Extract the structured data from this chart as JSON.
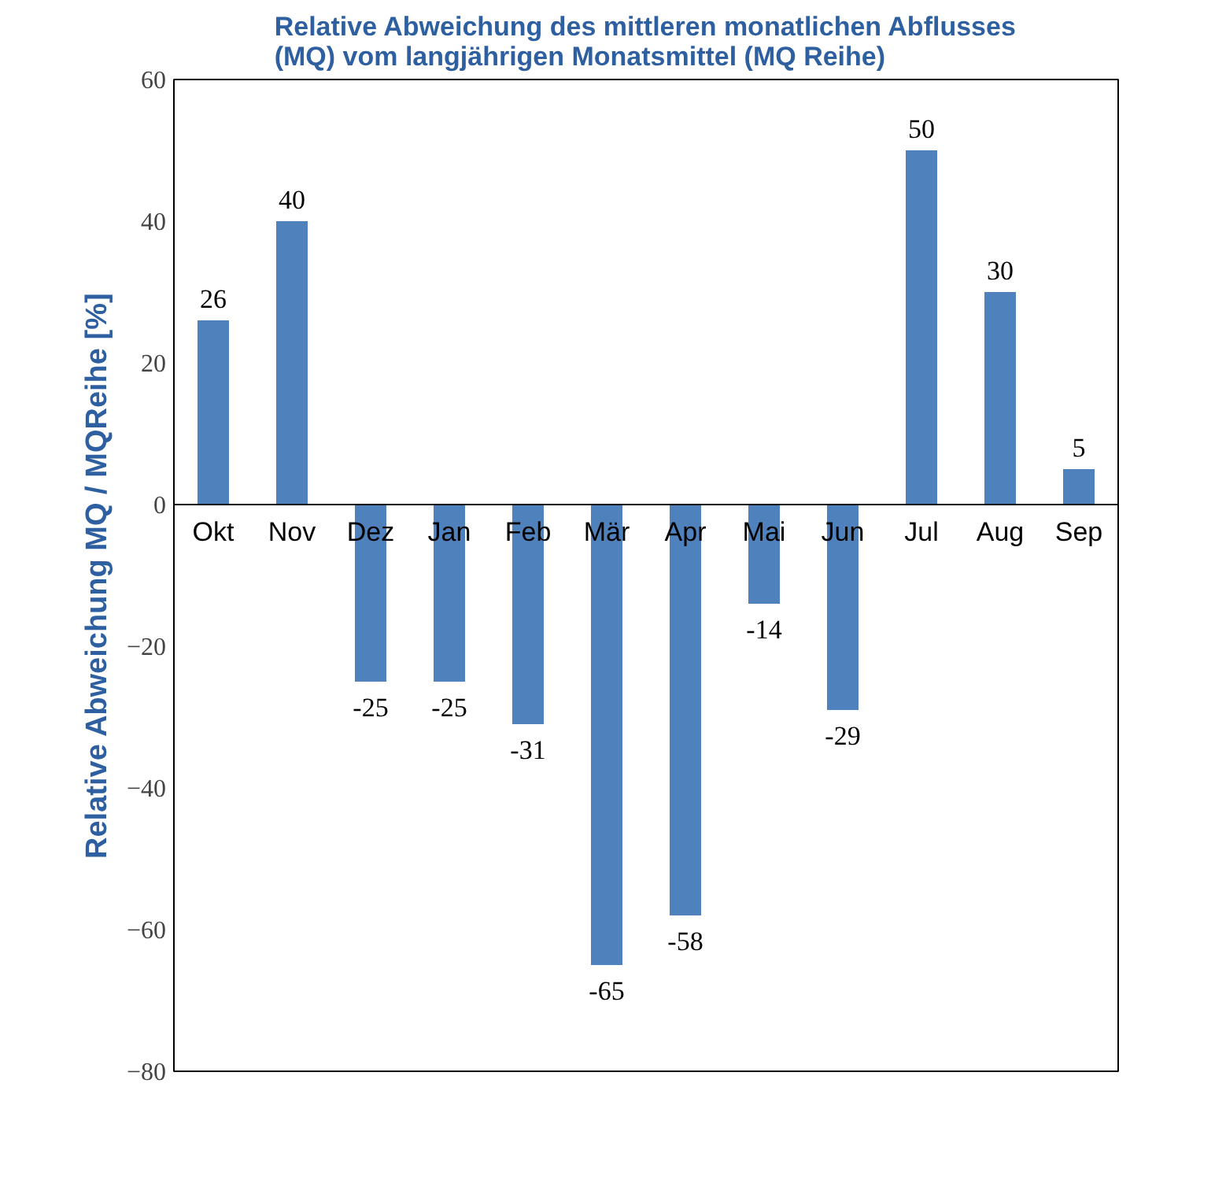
{
  "chart_data": {
    "type": "bar",
    "title": "Relative Abweichung des mittleren monatlichen Abflusses (MQ) vom langjährigen Monatsmittel (MQ Reihe)",
    "ylabel": "Relative Abweichung MQ / MQReihe [%]",
    "categories": [
      "Okt",
      "Nov",
      "Dez",
      "Jan",
      "Feb",
      "Mär",
      "Apr",
      "Mai",
      "Jun",
      "Jul",
      "Aug",
      "Sep"
    ],
    "values": [
      26,
      40,
      -25,
      -25,
      -31,
      -65,
      -58,
      -14,
      -29,
      50,
      30,
      5
    ],
    "color": "#4f81bd",
    "ylim": [
      -80,
      60
    ],
    "yticks": [
      -80,
      -60,
      -40,
      -20,
      0,
      20,
      40,
      60
    ],
    "data_labels": true,
    "grid": false
  }
}
